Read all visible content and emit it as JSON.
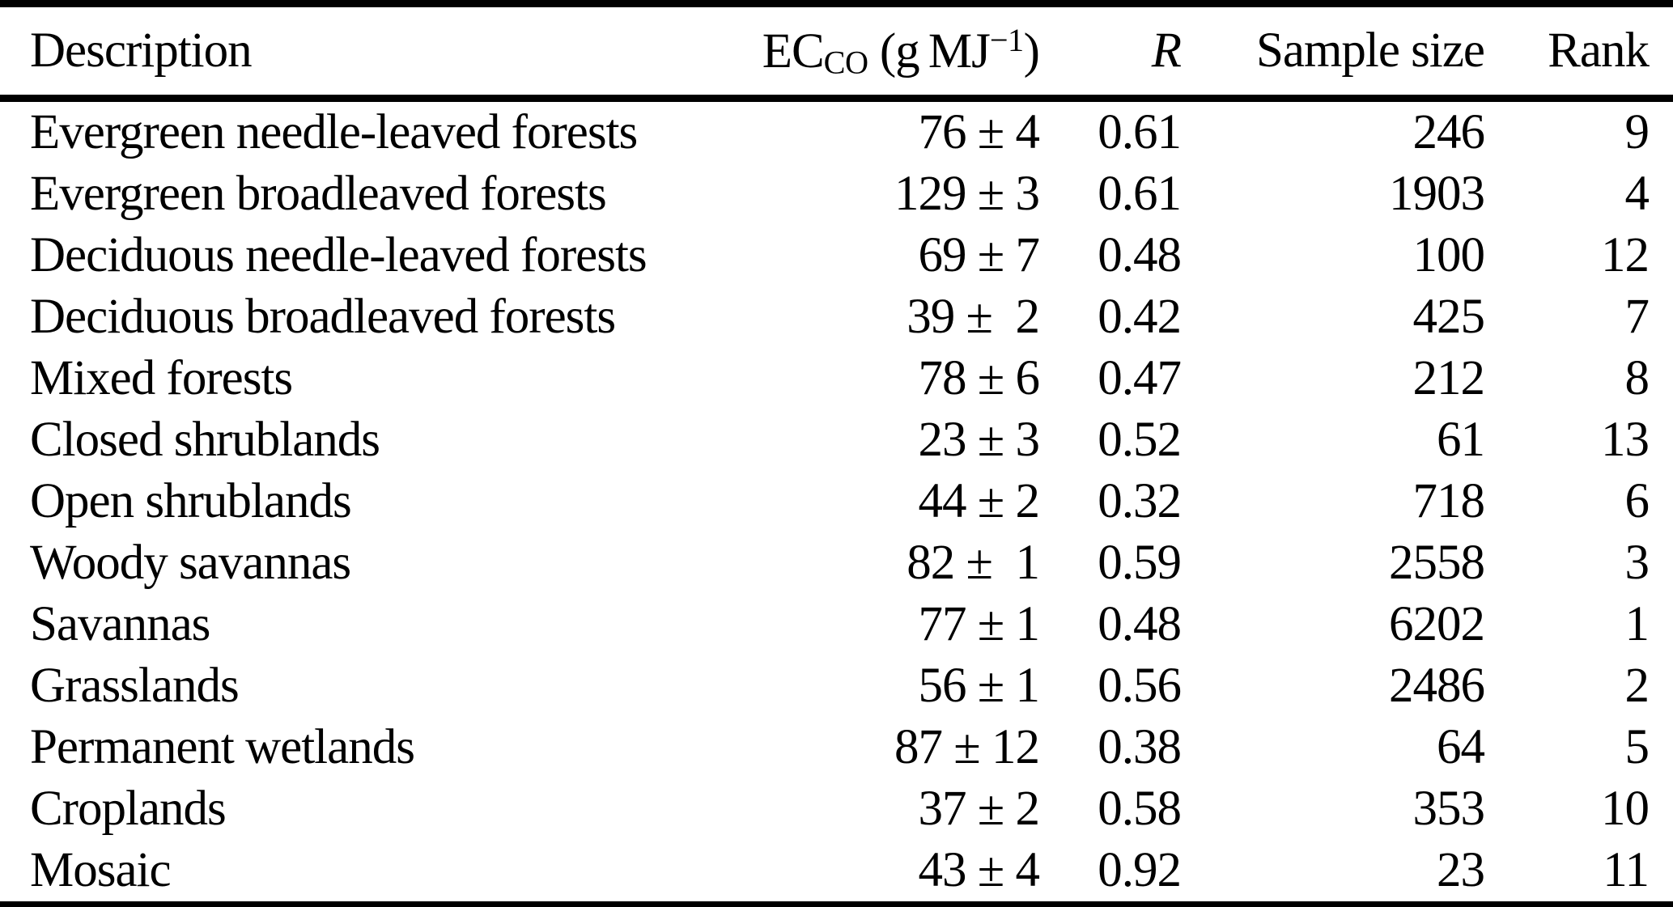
{
  "header": {
    "description": "Description",
    "ec": {
      "base": "EC",
      "sub": "CO",
      "unit_pre": " (g MJ",
      "sup": "−1",
      "unit_post": ")"
    },
    "r": "R",
    "sample_size": "Sample size",
    "rank": "Rank"
  },
  "rows": [
    {
      "description": "Evergreen needle-leaved forests",
      "ec": "76 ± 4",
      "r": "0.61",
      "sample_size": "246",
      "rank": "9"
    },
    {
      "description": "Evergreen broadleaved forests",
      "ec": "129 ± 3",
      "r": "0.61",
      "sample_size": "1903",
      "rank": "4"
    },
    {
      "description": "Deciduous needle-leaved forests",
      "ec": "69 ± 7",
      "r": "0.48",
      "sample_size": "100",
      "rank": "12"
    },
    {
      "description": "Deciduous broadleaved forests",
      "ec": "39 ±  2",
      "r": "0.42",
      "sample_size": "425",
      "rank": "7"
    },
    {
      "description": "Mixed forests",
      "ec": "78 ± 6",
      "r": "0.47",
      "sample_size": "212",
      "rank": "8"
    },
    {
      "description": "Closed shrublands",
      "ec": "23 ± 3",
      "r": "0.52",
      "sample_size": "61",
      "rank": "13"
    },
    {
      "description": "Open shrublands",
      "ec": "44 ± 2",
      "r": "0.32",
      "sample_size": "718",
      "rank": "6"
    },
    {
      "description": "Woody savannas",
      "ec": "82 ±  1",
      "r": "0.59",
      "sample_size": "2558",
      "rank": "3"
    },
    {
      "description": "Savannas",
      "ec": "77 ± 1",
      "r": "0.48",
      "sample_size": "6202",
      "rank": "1"
    },
    {
      "description": "Grasslands",
      "ec": "56 ± 1",
      "r": "0.56",
      "sample_size": "2486",
      "rank": "2"
    },
    {
      "description": "Permanent wetlands",
      "ec": "87 ± 12",
      "r": "0.38",
      "sample_size": "64",
      "rank": "5"
    },
    {
      "description": "Croplands",
      "ec": "37 ± 2",
      "r": "0.58",
      "sample_size": "353",
      "rank": "10"
    },
    {
      "description": "Mosaic",
      "ec": "43 ± 4",
      "r": "0.92",
      "sample_size": "23",
      "rank": "11"
    }
  ],
  "colors": {
    "text": "#000000",
    "background": "#ffffff",
    "rule": "#000000"
  }
}
